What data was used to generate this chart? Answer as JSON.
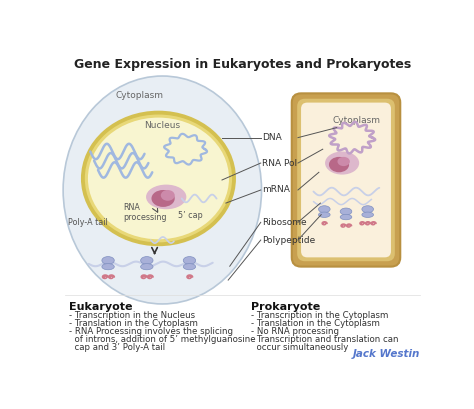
{
  "title": "Gene Expression in Eukaryotes and Prokaryotes",
  "title_fontsize": 9,
  "background_color": "#ffffff",
  "eukaryote_cell_color": "#e8eef4",
  "eukaryote_cell_border": "#b8c8d8",
  "nucleus_fill": "#f8f5d0",
  "nucleus_ring_color": "#d4c050",
  "nucleus_ring_inner": "#e8d878",
  "prokaryote_outer_border": "#c8a860",
  "prokaryote_ring_color": "#d4b870",
  "prokaryote_inner_fill": "#faf0dc",
  "dna_color": "#a0b8e0",
  "rna_pol_outer": "#e0b8d0",
  "rna_pol_inner": "#c07898",
  "mrna_color": "#c8d0e8",
  "ribosome_color": "#a8b0d8",
  "polypeptide_color": "#d07888",
  "annotation_fontsize": 6.5,
  "small_label_fontsize": 5.8,
  "eukaryote_label": "Eukaryote",
  "prokaryote_label": "Prokaryote",
  "eukaryote_bullets": [
    "- Transcription in the Nucleus",
    "- Translation in the Cytoplasm",
    "- RNA Processing involves the splicing",
    "  of introns, addition of 5’ methylguanosine",
    "  cap and 3’ Poly-A tail"
  ],
  "prokaryote_bullets": [
    "- Transcription in the Cytoplasm",
    "- Translation in the Cytoplasm",
    "- No RNA processing",
    "- Transcription and translation can",
    "  occur simultaneously"
  ],
  "credit": "Jack Westin",
  "credit_color": "#5577cc",
  "credit_fontsize": 7.5,
  "annotations": [
    "DNA",
    "RNA Pol",
    "mRNA",
    "Ribosome",
    "Polypeptide"
  ],
  "cytoplasm_label": "Cytoplasm",
  "nucleus_label": "Nucleus",
  "prokaryote_cytoplasm_label": "Cytoplasm",
  "rna_processing_label": "RNA\nprocessing",
  "five_cap_label": "5’ cap",
  "poly_a_label": "Poly-A tail"
}
